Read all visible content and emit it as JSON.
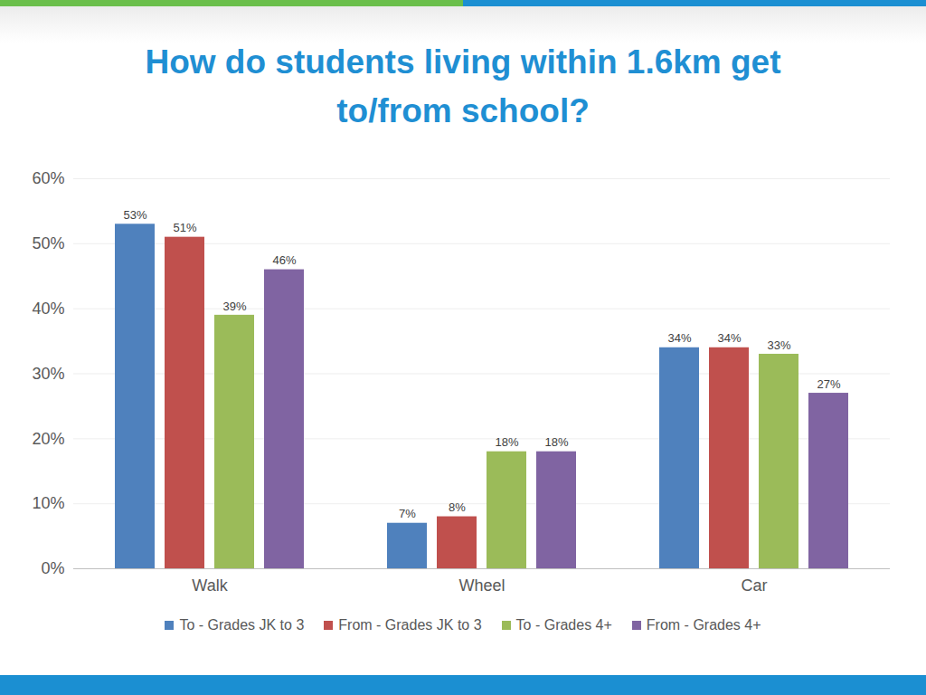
{
  "chart_data": {
    "type": "bar",
    "title": "How do students living within 1.6km get to/from school?",
    "categories": [
      "Walk",
      "Wheel",
      "Car"
    ],
    "series": [
      {
        "name": "To - Grades JK to 3",
        "color": "#4f81bd",
        "values": [
          53,
          7,
          34
        ],
        "value_labels": [
          "53%",
          "7%",
          "34%"
        ]
      },
      {
        "name": "From - Grades JK to 3",
        "color": "#c0504d",
        "values": [
          51,
          8,
          34
        ],
        "value_labels": [
          "51%",
          "8%",
          "34%"
        ]
      },
      {
        "name": "To - Grades 4+",
        "color": "#9bbb59",
        "values": [
          39,
          18,
          33
        ],
        "value_labels": [
          "39%",
          "18%",
          "33%"
        ]
      },
      {
        "name": "From - Grades 4+",
        "color": "#8064a2",
        "values": [
          46,
          18,
          27
        ],
        "value_labels": [
          "46%",
          "18%",
          "27%"
        ]
      }
    ],
    "ylim": [
      0,
      60
    ],
    "yticks": [
      {
        "value": 0,
        "label": "0%"
      },
      {
        "value": 10,
        "label": "10%"
      },
      {
        "value": 20,
        "label": "20%"
      },
      {
        "value": 30,
        "label": "30%"
      },
      {
        "value": 40,
        "label": "40%"
      },
      {
        "value": 50,
        "label": "50%"
      },
      {
        "value": 60,
        "label": "60%"
      }
    ],
    "grid": true,
    "legend": "bottom",
    "data_labels": true
  }
}
